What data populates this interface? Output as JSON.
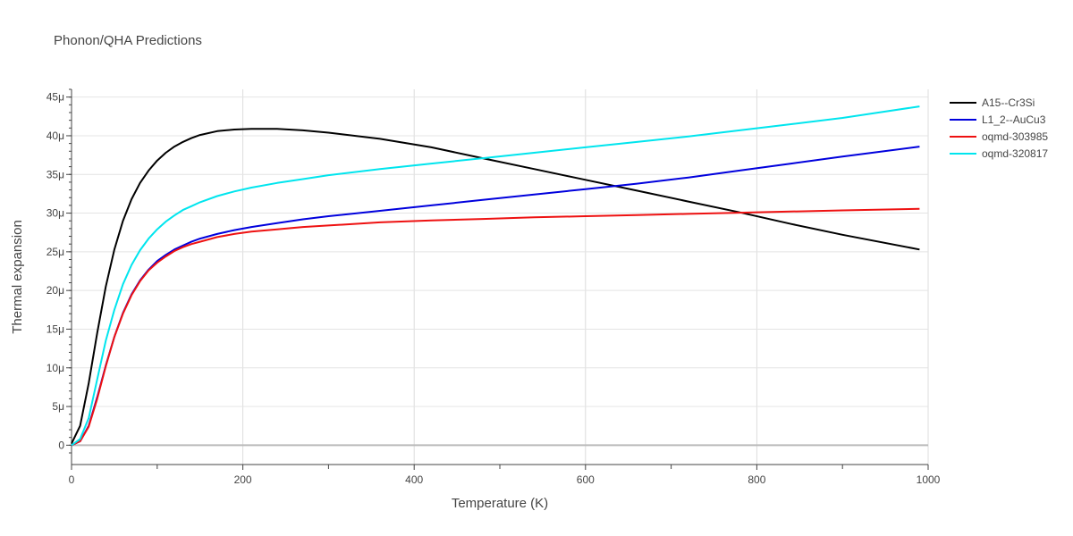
{
  "chart_data": {
    "type": "line",
    "title": "Phonon/QHA Predictions",
    "xlabel": "Temperature (K)",
    "ylabel": "Thermal expansion",
    "xlim": [
      0,
      1000
    ],
    "ylim": [
      -2.5e-06,
      4.6e-05
    ],
    "x_ticks": [
      0,
      200,
      400,
      600,
      800,
      1000
    ],
    "x_tick_labels": [
      "0",
      "200",
      "400",
      "600",
      "800",
      "1000"
    ],
    "y_ticks": [
      0,
      5e-06,
      1e-05,
      1.5e-05,
      2e-05,
      2.5e-05,
      3e-05,
      3.5e-05,
      4e-05,
      4.5e-05
    ],
    "y_tick_labels": [
      "0",
      "5μ",
      "10μ",
      "15μ",
      "20μ",
      "25μ",
      "30μ",
      "35μ",
      "40μ",
      "45μ"
    ],
    "grid": true,
    "legend_position": "top-right",
    "series": [
      {
        "name": "A15--Cr3Si",
        "color": "#000000",
        "x": [
          0,
          10,
          20,
          30,
          40,
          50,
          60,
          70,
          80,
          90,
          100,
          110,
          120,
          130,
          140,
          150,
          170,
          190,
          210,
          240,
          270,
          300,
          360,
          420,
          480,
          540,
          600,
          660,
          720,
          780,
          840,
          900,
          990
        ],
        "y": [
          2e-07,
          2.5e-06,
          8e-06,
          1.45e-05,
          2.05e-05,
          2.53e-05,
          2.9e-05,
          3.18e-05,
          3.39e-05,
          3.55e-05,
          3.68e-05,
          3.78e-05,
          3.86e-05,
          3.92e-05,
          3.97e-05,
          4.01e-05,
          4.06e-05,
          4.08e-05,
          4.09e-05,
          4.09e-05,
          4.07e-05,
          4.04e-05,
          3.96e-05,
          3.85e-05,
          3.71e-05,
          3.57e-05,
          3.43e-05,
          3.29e-05,
          3.15e-05,
          3.01e-05,
          2.86e-05,
          2.72e-05,
          2.53e-05
        ]
      },
      {
        "name": "L1_2--AuCu3",
        "color": "#0000dd",
        "x": [
          0,
          10,
          20,
          30,
          40,
          50,
          60,
          70,
          80,
          90,
          100,
          110,
          120,
          130,
          140,
          150,
          170,
          190,
          210,
          240,
          270,
          300,
          360,
          420,
          480,
          540,
          600,
          660,
          720,
          780,
          840,
          900,
          990
        ],
        "y": [
          0,
          5e-07,
          2.5e-06,
          6.2e-06,
          1.03e-05,
          1.4e-05,
          1.71e-05,
          1.95e-05,
          2.13e-05,
          2.27e-05,
          2.38e-05,
          2.46e-05,
          2.53e-05,
          2.58e-05,
          2.63e-05,
          2.67e-05,
          2.73e-05,
          2.78e-05,
          2.82e-05,
          2.87e-05,
          2.92e-05,
          2.96e-05,
          3.03e-05,
          3.1e-05,
          3.17e-05,
          3.24e-05,
          3.31e-05,
          3.38e-05,
          3.46e-05,
          3.55e-05,
          3.64e-05,
          3.73e-05,
          3.86e-05
        ]
      },
      {
        "name": "oqmd-303985",
        "color": "#ee1111",
        "x": [
          0,
          10,
          20,
          30,
          40,
          50,
          60,
          70,
          80,
          90,
          100,
          110,
          120,
          130,
          140,
          150,
          170,
          190,
          210,
          240,
          270,
          300,
          360,
          420,
          480,
          540,
          600,
          660,
          720,
          780,
          840,
          900,
          990
        ],
        "y": [
          0,
          5e-07,
          2.4e-06,
          6e-06,
          1.02e-05,
          1.4e-05,
          1.7e-05,
          1.94e-05,
          2.12e-05,
          2.26e-05,
          2.36e-05,
          2.44e-05,
          2.51e-05,
          2.56e-05,
          2.6e-05,
          2.63e-05,
          2.69e-05,
          2.73e-05,
          2.76e-05,
          2.79e-05,
          2.82e-05,
          2.84e-05,
          2.88e-05,
          2.905e-05,
          2.925e-05,
          2.945e-05,
          2.96e-05,
          2.975e-05,
          2.99e-05,
          3.005e-05,
          3.02e-05,
          3.035e-05,
          3.055e-05
        ]
      },
      {
        "name": "oqmd-320817",
        "color": "#00e5ee",
        "x": [
          0,
          10,
          20,
          30,
          40,
          50,
          60,
          70,
          80,
          90,
          100,
          110,
          120,
          130,
          140,
          150,
          170,
          190,
          210,
          240,
          270,
          300,
          360,
          420,
          480,
          540,
          600,
          660,
          720,
          780,
          840,
          900,
          990
        ],
        "y": [
          0,
          8e-07,
          3.5e-06,
          8.5e-06,
          1.35e-05,
          1.75e-05,
          2.08e-05,
          2.33e-05,
          2.52e-05,
          2.67e-05,
          2.79e-05,
          2.89e-05,
          2.97e-05,
          3.04e-05,
          3.09e-05,
          3.14e-05,
          3.22e-05,
          3.28e-05,
          3.33e-05,
          3.39e-05,
          3.44e-05,
          3.49e-05,
          3.57e-05,
          3.64e-05,
          3.71e-05,
          3.78e-05,
          3.85e-05,
          3.92e-05,
          3.99e-05,
          4.07e-05,
          4.15e-05,
          4.23e-05,
          4.38e-05
        ]
      }
    ]
  }
}
